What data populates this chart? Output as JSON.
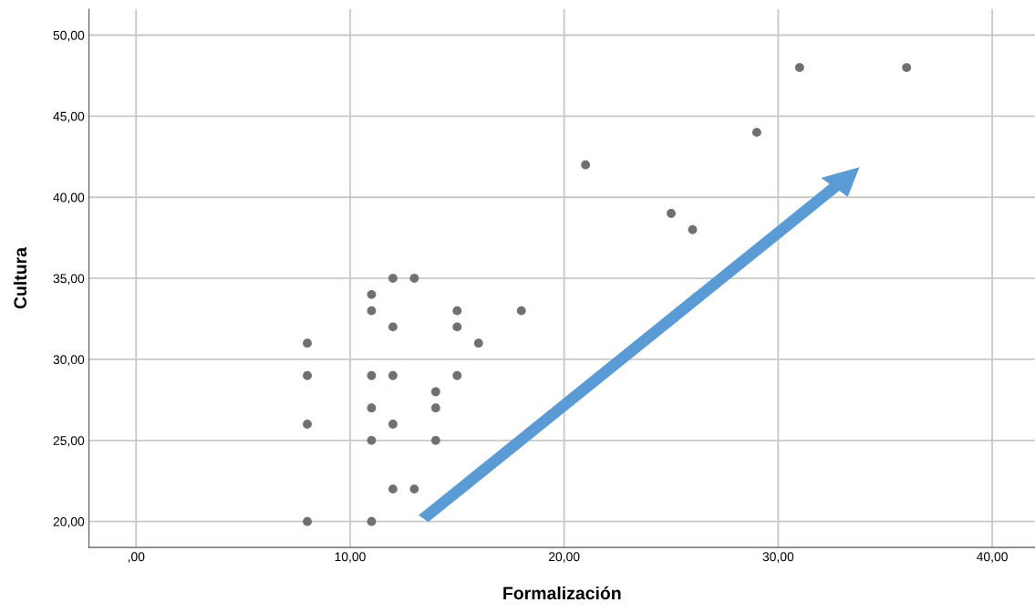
{
  "chart_data": {
    "type": "scatter",
    "xlabel": "Formalización",
    "ylabel": "Cultura",
    "x": [
      8,
      8,
      8,
      8,
      11,
      11,
      11,
      11,
      11,
      11,
      12,
      12,
      12,
      12,
      12,
      13,
      13,
      14,
      14,
      14,
      15,
      15,
      15,
      16,
      18,
      21,
      25,
      26,
      29,
      31,
      36
    ],
    "values": [
      31,
      29,
      26,
      20,
      34,
      33,
      29,
      27,
      25,
      20,
      35,
      32,
      29,
      26,
      22,
      35,
      22,
      28,
      27,
      25,
      33,
      32,
      29,
      31,
      33,
      42,
      39,
      38,
      44,
      48,
      48
    ],
    "color": "#707070",
    "marker": "circle",
    "grid": true,
    "xlim": [
      -2.2,
      42
    ],
    "ylim": [
      18.4,
      51.6
    ],
    "xticks": [
      {
        "value": 0,
        "label": ",00"
      },
      {
        "value": 10,
        "label": "10,00"
      },
      {
        "value": 20,
        "label": "20,00"
      },
      {
        "value": 30,
        "label": "30,00"
      },
      {
        "value": 40,
        "label": "40,00"
      }
    ],
    "yticks": [
      {
        "value": 20,
        "label": "20,00"
      },
      {
        "value": 25,
        "label": "25,00"
      },
      {
        "value": 30,
        "label": "30,00"
      },
      {
        "value": 35,
        "label": "35,00"
      },
      {
        "value": 40,
        "label": "40,00"
      },
      {
        "value": 45,
        "label": "45,00"
      },
      {
        "value": 50,
        "label": "50,00"
      }
    ]
  }
}
